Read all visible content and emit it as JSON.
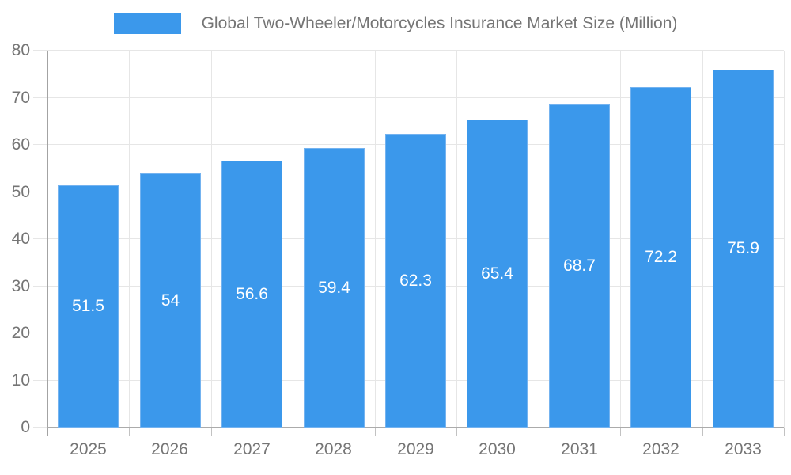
{
  "legend": {
    "label": "Global Two-Wheeler/Motorcycles Insurance Market Size (Million)"
  },
  "chart_data": {
    "type": "bar",
    "title": "Global Two-Wheeler/Motorcycles Insurance Market Size (Million)",
    "series_name": "Global Two-Wheeler/Motorcycles Insurance Market Size (Million)",
    "categories": [
      "2025",
      "2026",
      "2027",
      "2028",
      "2029",
      "2030",
      "2031",
      "2032",
      "2033"
    ],
    "values": [
      51.5,
      54,
      56.6,
      59.4,
      62.3,
      65.4,
      68.7,
      72.2,
      75.9
    ],
    "value_labels": [
      "51.5",
      "54",
      "56.6",
      "59.4",
      "62.3",
      "65.4",
      "68.7",
      "72.2",
      "75.9"
    ],
    "ylim": [
      0,
      80
    ],
    "ytick_step": 10,
    "ytick_labels": [
      "0",
      "10",
      "20",
      "30",
      "40",
      "50",
      "60",
      "70",
      "80"
    ],
    "grid": true,
    "legend_position": "top",
    "colors": {
      "bar_fill": "#3b98eb",
      "bar_border": "#74b3f0",
      "value_label": "#ffffff",
      "axis_label": "#757575",
      "gridline": "#e6e6e6",
      "axis_line": "#a6a6a6",
      "background": "#ffffff"
    }
  }
}
